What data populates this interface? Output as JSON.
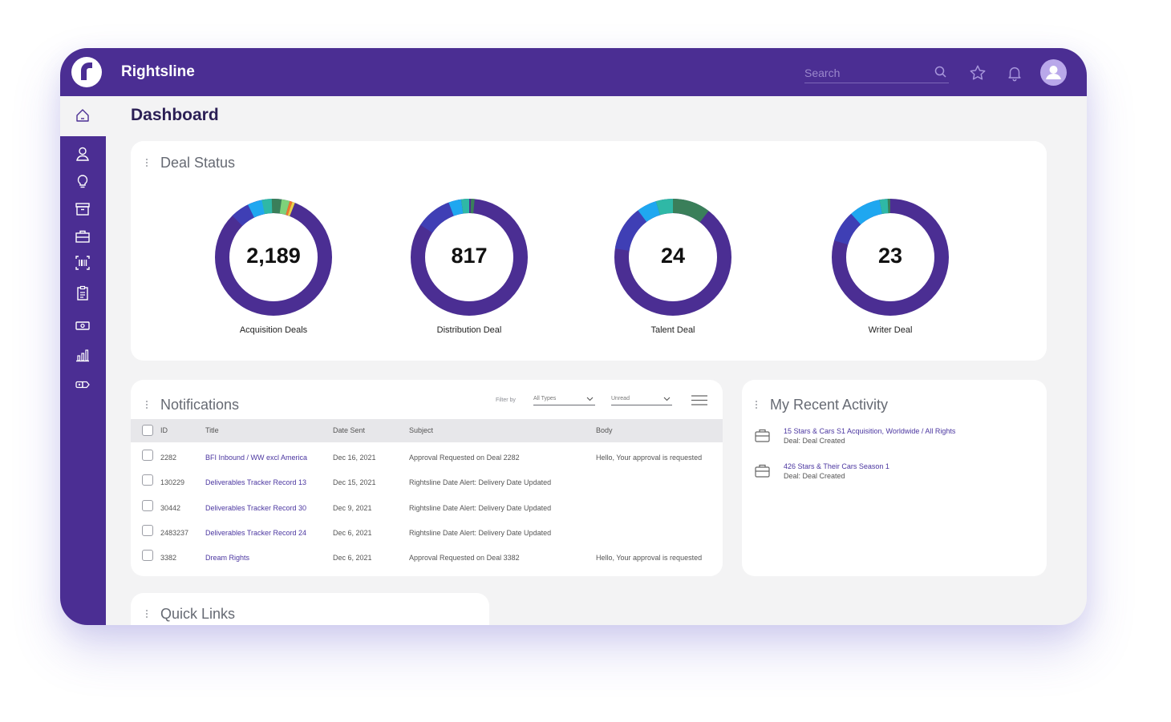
{
  "app": {
    "title": "Rightsline",
    "logo_letter": "r"
  },
  "topbar": {
    "search_placeholder": "Search",
    "icons": [
      "search-icon",
      "star-icon",
      "bell-icon",
      "user-avatar-icon"
    ]
  },
  "sidebar": {
    "items": [
      "home-icon",
      "person-icon",
      "lightbulb-icon",
      "archive-icon",
      "briefcase-icon",
      "barcode-icon",
      "clipboard-icon",
      "money-icon",
      "bar-chart-icon",
      "tag-icon"
    ]
  },
  "page": {
    "title": "Dashboard"
  },
  "deal_status": {
    "title": "Deal Status",
    "donuts": [
      {
        "label": "Acquisition Deals",
        "value": "2,189"
      },
      {
        "label": "Distribution Deal",
        "value": "817"
      },
      {
        "label": "Talent Deal",
        "value": "24"
      },
      {
        "label": "Writer Deal",
        "value": "23"
      }
    ]
  },
  "notifications": {
    "title": "Notifications",
    "filter_by": "Filter by",
    "filter_type": "All Types",
    "filter_status": "Unread",
    "columns": {
      "id": "ID",
      "title": "Title",
      "date": "Date Sent",
      "subject": "Subject",
      "body": "Body"
    },
    "rows": [
      {
        "id": "2282",
        "title": "BFI Inbound / WW excl America",
        "date": "Dec 16, 2021",
        "subject": "Approval Requested on Deal 2282",
        "body": "Hello, Your approval is requested"
      },
      {
        "id": "130229",
        "title": "Deliverables Tracker Record 13",
        "date": "Dec 15, 2021",
        "subject": "Rightsline Date Alert: Delivery Date Updated",
        "body": ""
      },
      {
        "id": "30442",
        "title": "Deliverables Tracker Record 30",
        "date": "Dec 9, 2021",
        "subject": "Rightsline Date Alert: Delivery Date Updated",
        "body": ""
      },
      {
        "id": "2483237",
        "title": "Deliverables Tracker Record 24",
        "date": "Dec 6, 2021",
        "subject": "Rightsline Date Alert: Delivery Date Updated",
        "body": ""
      },
      {
        "id": "3382",
        "title": "Dream Rights",
        "date": "Dec 6, 2021",
        "subject": "Approval Requested on Deal 3382",
        "body": "Hello, Your approval is requested"
      }
    ]
  },
  "recent_activity": {
    "title": "My Recent Activity",
    "items": [
      {
        "title": "15 Stars & Cars S1 Acquisition, Worldwide / All Rights",
        "sub": "Deal: Deal Created"
      },
      {
        "title": "426 Stars & Their Cars Season 1",
        "sub": "Deal: Deal Created"
      }
    ]
  },
  "quick_links": {
    "title": "Quick Links"
  },
  "colors": {
    "brand": "#4b2e93",
    "ring_main": "#4b2e93"
  }
}
